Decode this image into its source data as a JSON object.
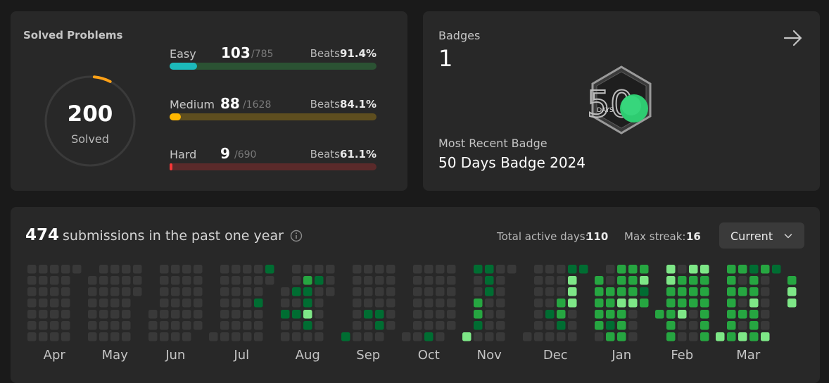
{
  "solved": {
    "title": "Solved Problems",
    "total": "200",
    "total_label": "Solved",
    "ring_color": "#ffa116",
    "ring_fraction": 0.06,
    "difficulties": [
      {
        "name": "Easy",
        "count": "103",
        "total": "/785",
        "beats_label": "Beats",
        "beats": "91.4%",
        "fill_color": "#1cbaba",
        "track_color": "#2b5233",
        "fraction": 0.131
      },
      {
        "name": "Medium",
        "count": "88",
        "total": "/1628",
        "beats_label": "Beats",
        "beats": "84.1%",
        "fill_color": "#ffb700",
        "track_color": "#5e4e1f",
        "fraction": 0.054
      },
      {
        "name": "Hard",
        "count": "9",
        "total": "/690",
        "beats_label": "Beats",
        "beats": "61.1%",
        "fill_color": "#f63737",
        "track_color": "#5a2a2a",
        "fraction": 0.013
      }
    ]
  },
  "badges": {
    "label": "Badges",
    "count": "1",
    "badge_number": "50",
    "badge_unit": "DAYS",
    "recent_label": "Most Recent Badge",
    "recent_name": "50 Days Badge 2024"
  },
  "activity": {
    "count": "474",
    "text": "submissions in the past one year",
    "active_days_label": "Total active days:",
    "active_days": "110",
    "max_streak_label": "Max streak:",
    "max_streak": "16",
    "dropdown": "Current",
    "months": [
      "Apr",
      "May",
      "Jun",
      "Jul",
      "Aug",
      "Sep",
      "Oct",
      "Nov",
      "Dec",
      "Jan",
      "Feb",
      "Mar"
    ],
    "colors": {
      "empty": "#393939",
      "level1": "#0e4429",
      "level2": "#006d32",
      "level3": "#26a641",
      "level4": "#7ee787"
    },
    "calendar": [
      {
        "month": "Apr",
        "weeks": [
          [
            0,
            0,
            0,
            0,
            0,
            0,
            0
          ],
          [
            0,
            0,
            0,
            0,
            0,
            0,
            0
          ],
          [
            0,
            0,
            0,
            0,
            0,
            0,
            0
          ],
          [
            0,
            0,
            0,
            0,
            0,
            0,
            0
          ],
          [
            0,
            -1,
            -1,
            -1,
            -1,
            -1,
            -1
          ]
        ]
      },
      {
        "month": "May",
        "weeks": [
          [
            -1,
            0,
            0,
            0,
            0,
            0,
            0
          ],
          [
            0,
            0,
            0,
            0,
            0,
            0,
            0
          ],
          [
            0,
            0,
            0,
            0,
            0,
            0,
            0
          ],
          [
            0,
            0,
            0,
            0,
            0,
            0,
            0
          ],
          [
            0,
            0,
            0,
            -1,
            -1,
            -1,
            -1
          ]
        ]
      },
      {
        "month": "Jun",
        "weeks": [
          [
            -1,
            -1,
            -1,
            -1,
            0,
            0,
            0
          ],
          [
            0,
            0,
            0,
            0,
            0,
            0,
            0
          ],
          [
            0,
            0,
            0,
            0,
            0,
            0,
            0
          ],
          [
            0,
            0,
            0,
            0,
            0,
            0,
            0
          ],
          [
            0,
            0,
            0,
            0,
            0,
            0,
            -1
          ]
        ]
      },
      {
        "month": "Jul",
        "weeks": [
          [
            -1,
            -1,
            -1,
            -1,
            -1,
            -1,
            0
          ],
          [
            0,
            0,
            0,
            0,
            0,
            0,
            0
          ],
          [
            0,
            0,
            0,
            0,
            0,
            0,
            0
          ],
          [
            0,
            0,
            0,
            0,
            0,
            0,
            0
          ],
          [
            0,
            0,
            0,
            2,
            0,
            0,
            0
          ],
          [
            2,
            0,
            -1,
            -1,
            -1,
            -1,
            -1
          ]
        ]
      },
      {
        "month": "Aug",
        "weeks": [
          [
            -1,
            -1,
            0,
            0,
            2,
            0,
            0
          ],
          [
            0,
            0,
            2,
            0,
            2,
            0,
            0
          ],
          [
            0,
            3,
            2,
            2,
            4,
            2,
            0
          ],
          [
            0,
            2,
            0,
            0,
            0,
            0,
            0
          ],
          [
            0,
            0,
            0,
            -1,
            -1,
            -1,
            -1
          ]
        ]
      },
      {
        "month": "Sep",
        "weeks": [
          [
            -1,
            -1,
            -1,
            -1,
            -1,
            -1,
            2
          ],
          [
            0,
            0,
            0,
            0,
            0,
            0,
            0
          ],
          [
            0,
            0,
            0,
            0,
            2,
            0,
            0
          ],
          [
            0,
            0,
            0,
            0,
            2,
            2,
            0
          ],
          [
            0,
            0,
            0,
            0,
            0,
            0,
            -1
          ]
        ]
      },
      {
        "month": "Oct",
        "weeks": [
          [
            -1,
            -1,
            -1,
            -1,
            -1,
            -1,
            0
          ],
          [
            0,
            0,
            0,
            0,
            0,
            0,
            0
          ],
          [
            0,
            0,
            0,
            0,
            0,
            0,
            2
          ],
          [
            0,
            0,
            0,
            0,
            0,
            0,
            0
          ],
          [
            0,
            0,
            0,
            0,
            0,
            0,
            -1
          ]
        ]
      },
      {
        "month": "Nov",
        "weeks": [
          [
            -1,
            -1,
            -1,
            -1,
            -1,
            -1,
            4
          ],
          [
            2,
            0,
            0,
            3,
            3,
            2,
            0
          ],
          [
            2,
            2,
            2,
            0,
            0,
            0,
            0
          ],
          [
            0,
            0,
            0,
            0,
            0,
            0,
            0
          ],
          [
            0,
            -1,
            -1,
            -1,
            -1,
            -1,
            -1
          ]
        ]
      },
      {
        "month": "Dec",
        "weeks": [
          [
            -1,
            -1,
            -1,
            -1,
            -1,
            -1,
            0
          ],
          [
            0,
            0,
            0,
            0,
            0,
            0,
            0
          ],
          [
            0,
            0,
            0,
            0,
            2,
            0,
            0
          ],
          [
            0,
            0,
            0,
            3,
            3,
            2,
            0
          ],
          [
            2,
            4,
            4,
            4,
            0,
            0,
            0
          ],
          [
            2,
            -1,
            -1,
            -1,
            -1,
            -1,
            -1
          ]
        ]
      },
      {
        "month": "Jan",
        "weeks": [
          [
            -1,
            3,
            3,
            3,
            3,
            3,
            0
          ],
          [
            0,
            0,
            3,
            3,
            3,
            2,
            3
          ],
          [
            3,
            3,
            3,
            4,
            3,
            3,
            3
          ],
          [
            3,
            3,
            3,
            4,
            0,
            0,
            0
          ],
          [
            3,
            4,
            2,
            3,
            -1,
            -1,
            -1
          ]
        ]
      },
      {
        "month": "Feb",
        "weeks": [
          [
            -1,
            -1,
            -1,
            -1,
            3,
            -1,
            -1
          ],
          [
            4,
            4,
            3,
            3,
            3,
            3,
            3
          ],
          [
            0,
            3,
            3,
            3,
            4,
            0,
            0
          ],
          [
            4,
            3,
            3,
            3,
            0,
            0,
            0
          ],
          [
            4,
            3,
            3,
            3,
            3,
            3,
            3
          ]
        ]
      },
      {
        "month": "Mar",
        "weeks": [
          [
            -1,
            -1,
            -1,
            -1,
            -1,
            -1,
            4
          ],
          [
            3,
            3,
            3,
            3,
            3,
            3,
            3
          ],
          [
            3,
            0,
            3,
            0,
            3,
            0,
            4
          ],
          [
            2,
            3,
            3,
            4,
            3,
            3,
            3
          ],
          [
            3,
            0,
            0,
            0,
            0,
            0,
            4
          ],
          [
            2,
            -1,
            -1,
            -1,
            -1,
            -1,
            -1
          ]
        ]
      },
      {
        "month": "",
        "weeks": [
          [
            -1,
            3,
            4,
            4,
            -1,
            -1,
            -1
          ]
        ]
      }
    ]
  }
}
